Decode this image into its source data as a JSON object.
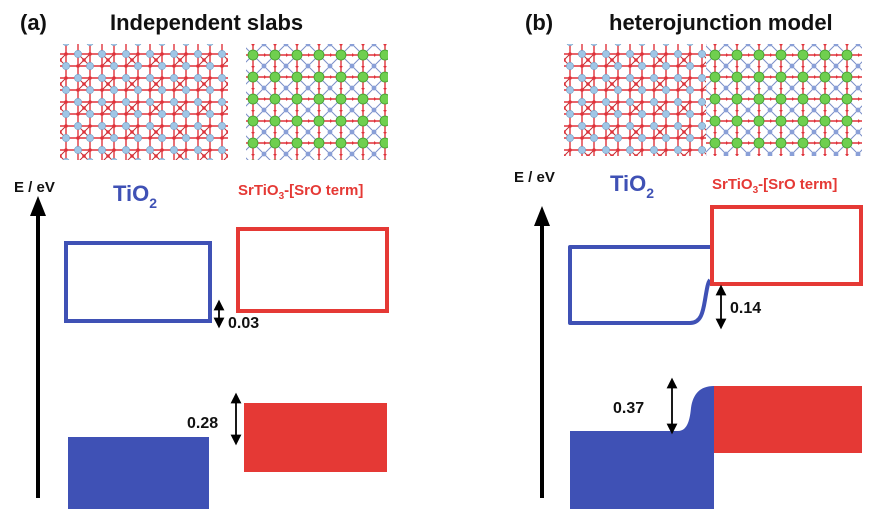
{
  "colors": {
    "tio2": "#3f51b5",
    "srtio3": "#e53935",
    "oxygen": "#e0323a",
    "titanium": "#9fc6e6",
    "strontium": "#6fcf4f",
    "axis": "#000000"
  },
  "panel_a": {
    "label": "(a)",
    "title": "Independent slabs",
    "axis_label": "E / eV",
    "tio2_label_main": "TiO",
    "tio2_label_sub": "2",
    "srtio3_label_pre": "SrTiO",
    "srtio3_label_sub": "3",
    "srtio3_label_post": "-[SrO term]",
    "cb_offset": "0.03",
    "vb_offset": "0.28"
  },
  "panel_b": {
    "label": "(b)",
    "title": "heterojunction model",
    "axis_label": "E / eV",
    "tio2_label_main": "TiO",
    "tio2_label_sub": "2",
    "srtio3_label_pre": "SrTiO",
    "srtio3_label_sub": "3",
    "srtio3_label_post": "-[SrO term]",
    "cb_offset": "0.14",
    "vb_offset": "0.37"
  }
}
